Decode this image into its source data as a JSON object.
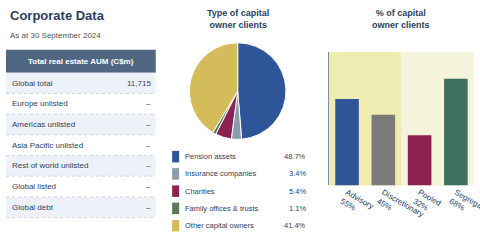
{
  "chart_data": [
    {
      "type": "table",
      "title": "Corporate Data",
      "subtitle": "As at 30 September 2024",
      "annotations": [
        "Total real estate AUM (C$m)"
      ],
      "categories": [
        "Global total",
        "Europe unlisted",
        "Americas unlisted",
        "Asia Pacific unlisted",
        "Rest of world unlisted",
        "Global listed",
        "Global debt"
      ],
      "values": [
        11715,
        null,
        null,
        null,
        null,
        null,
        null
      ],
      "value_labels": [
        "11,715",
        "–",
        "–",
        "–",
        "–",
        "–",
        "–"
      ]
    },
    {
      "type": "pie",
      "title": "Type of capital\nowner clients",
      "categories": [
        "Pension assets",
        "Insurance companies",
        "Charities",
        "Family offices & trusts",
        "Other capital owners"
      ],
      "values": [
        48.7,
        3.4,
        5.4,
        1.1,
        41.4
      ],
      "value_labels": [
        "48.7%",
        "3.4%",
        "5.4%",
        "1.1%",
        "41.4%"
      ],
      "colors": [
        "#2e5597",
        "#8b9caa",
        "#8b2252",
        "#5a7a5a",
        "#d4bc5a"
      ]
    },
    {
      "type": "bar",
      "title": "% of capital\nowner clients",
      "categories": [
        "Advisory",
        "Discretionary",
        "Pooled",
        "Segregated"
      ],
      "values": [
        55,
        45,
        32,
        68
      ],
      "value_labels": [
        "55%",
        "45%",
        "32%",
        "68%"
      ],
      "colors": [
        "#2e5597",
        "#7a7a7a",
        "#8b2252",
        "#3d7060"
      ],
      "ylim": [
        0,
        85
      ],
      "tick_labels": "x",
      "grid": false
    }
  ]
}
